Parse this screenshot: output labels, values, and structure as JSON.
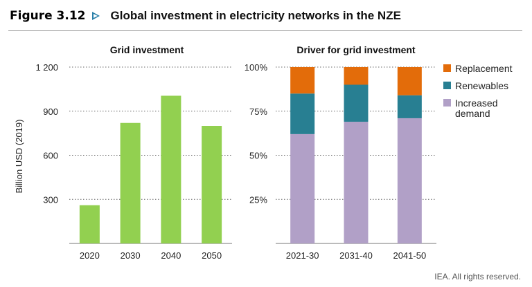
{
  "header": {
    "figure_label": "Figure 3.12",
    "title": "Global investment in electricity networks in the NZE"
  },
  "credit": "IEA. All rights reserved.",
  "colors": {
    "grid_bar": "#92d050",
    "replacement": "#e36c0a",
    "renewables": "#287f92",
    "increased_demand": "#b1a0c7"
  },
  "chart_data": [
    {
      "type": "bar",
      "title": "Grid investment",
      "ylabel": "Billion USD (2019)",
      "categories": [
        "2020",
        "2030",
        "2040",
        "2050"
      ],
      "values": [
        260,
        820,
        1005,
        800
      ],
      "ylim": [
        0,
        1200
      ],
      "yticks": [
        300,
        600,
        900,
        1200
      ],
      "ytick_labels": [
        "300",
        "600",
        "900",
        "1 200"
      ],
      "grid": true
    },
    {
      "type": "bar",
      "stacked": true,
      "title": "Driver for grid investment",
      "categories": [
        "2021-30",
        "2031-40",
        "2041-50"
      ],
      "series": [
        {
          "name": "Increased demand",
          "values": [
            62,
            69,
            71
          ]
        },
        {
          "name": "Renewables",
          "values": [
            23,
            21,
            13
          ]
        },
        {
          "name": "Replacement",
          "values": [
            15,
            10,
            16
          ]
        }
      ],
      "ylim": [
        0,
        100
      ],
      "yticks": [
        25,
        50,
        75,
        100
      ],
      "ytick_labels": [
        "25%",
        "50%",
        "75%",
        "100%"
      ],
      "legend": {
        "position": "right",
        "items": [
          {
            "key": "replacement",
            "lines": [
              "Replacement"
            ]
          },
          {
            "key": "renewables",
            "lines": [
              "Renewables"
            ]
          },
          {
            "key": "increased_demand",
            "lines": [
              "Increased",
              "demand"
            ]
          }
        ]
      },
      "grid": true
    }
  ]
}
